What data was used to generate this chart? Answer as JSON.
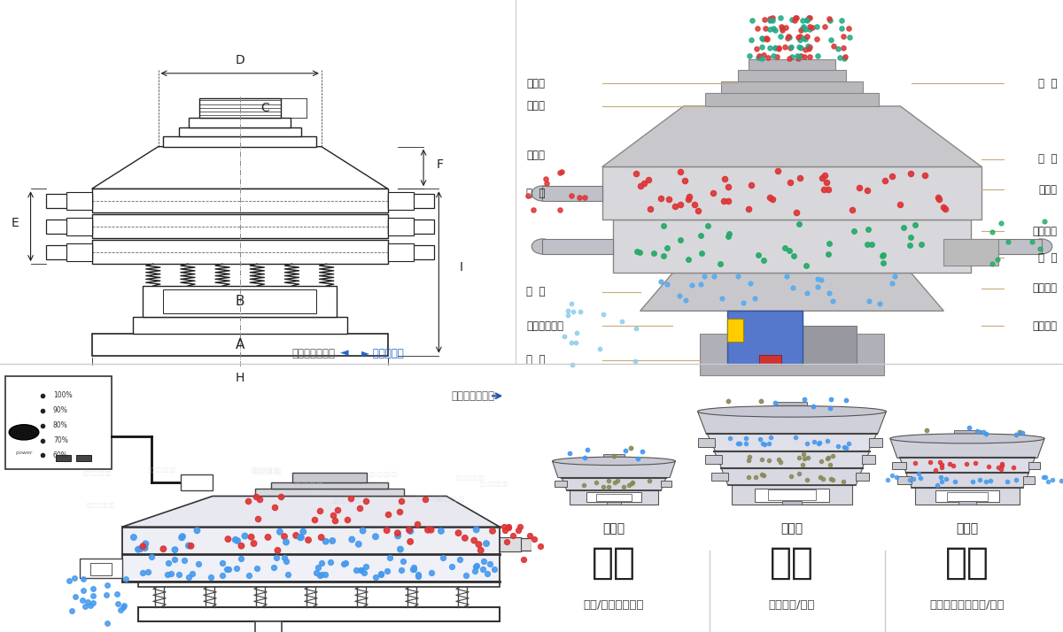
{
  "bg_color": "#ffffff",
  "blue_dot": "#4499ee",
  "red_dot": "#dd3333",
  "green_dot": "#33aa88",
  "tan_line": "#c8aa78",
  "dark": "#222222",
  "mid_gray": "#aaaaaa",
  "light_gray": "#dddddd",
  "left_labels": [
    "进料口",
    "防尘盖",
    "出料口",
    "束  环",
    "弹  簧",
    "运输固定螺栓",
    "机  座"
  ],
  "right_labels": [
    "筛  网",
    "网  架",
    "加重块",
    "上部重锤",
    "筛  盘",
    "振动电机",
    "下部重锤"
  ],
  "bottom_left_title": "分级",
  "bottom_mid_title": "过滤",
  "bottom_right_title": "除杂",
  "bottom_left_sub": "颗粒/粉末准确分级",
  "bottom_mid_sub": "去除异物/结块",
  "bottom_right_sub": "去除液体中的颗粒/异物",
  "bottom_captions": [
    "单层式",
    "三层式",
    "双层式"
  ],
  "dim_labels": [
    "A",
    "B",
    "C",
    "D",
    "E",
    "F",
    "H",
    "I"
  ]
}
